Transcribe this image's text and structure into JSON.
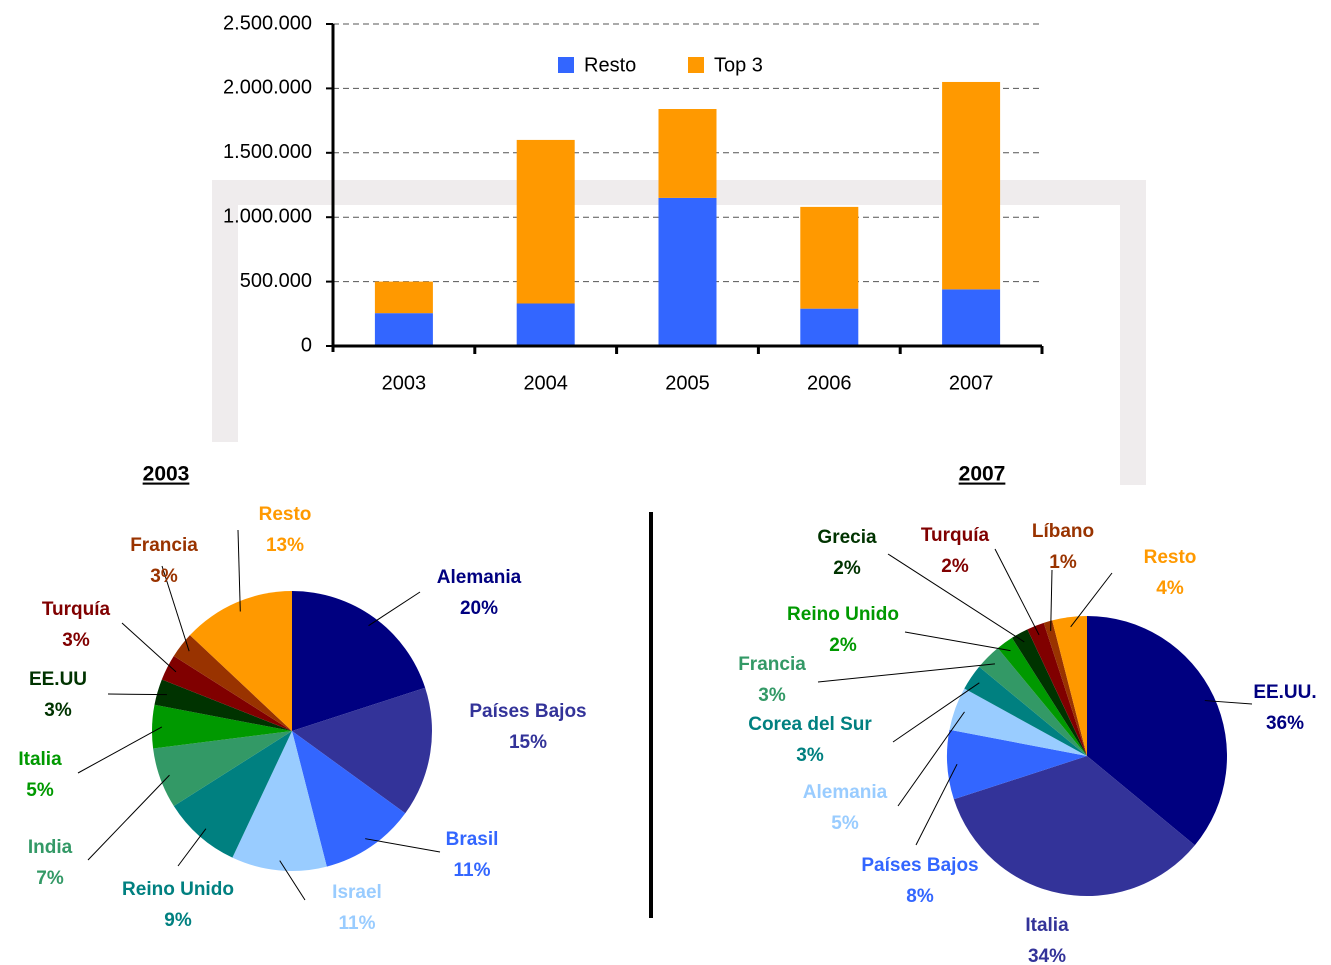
{
  "chart_data": [
    {
      "type": "bar",
      "stacked": true,
      "categories": [
        "2003",
        "2004",
        "2005",
        "2006",
        "2007"
      ],
      "series": [
        {
          "name": "Resto",
          "color": "#3366ff",
          "values": [
            255000,
            330000,
            1150000,
            290000,
            440000
          ]
        },
        {
          "name": "Top 3",
          "color": "#ff9900",
          "values": [
            245000,
            1270000,
            690000,
            790000,
            1610000
          ]
        }
      ],
      "ylim": [
        0,
        2500000
      ],
      "yticks": [
        0,
        {
          "value": 500000,
          "label": "500.000"
        },
        {
          "value": 1000000,
          "label": "1.000.000"
        },
        {
          "value": 1500000,
          "label": "1.500.000"
        },
        {
          "value": 2000000,
          "label": "2.000.000"
        },
        {
          "value": 2500000,
          "label": "2.500.000"
        }
      ],
      "grid": true,
      "legend": "top"
    },
    {
      "type": "pie",
      "title": "2003",
      "categories": [
        "Alemania",
        "Países Bajos",
        "Brasil",
        "Israel",
        "Reino Unido",
        "India",
        "Italia",
        "EE.UU",
        "Turquía",
        "Francia",
        "Resto"
      ],
      "values": [
        20,
        15,
        11,
        11,
        9,
        7,
        5,
        3,
        3,
        3,
        13
      ],
      "value_labels": [
        "20%",
        "15%",
        "11%",
        "11%",
        "9%",
        "7%",
        "5%",
        "3%",
        "3%",
        "3%",
        "13%"
      ],
      "colors": [
        "#000080",
        "#333399",
        "#3366ff",
        "#99ccff",
        "#008080",
        "#339966",
        "#009900",
        "#003300",
        "#800000",
        "#993300",
        "#ff9900"
      ]
    },
    {
      "type": "pie",
      "title": "2007",
      "categories": [
        "EE.UU.",
        "Italia",
        "Países Bajos",
        "Alemania",
        "Corea del Sur",
        "Francia",
        "Reino Unido",
        "Grecia",
        "Turquía",
        "Líbano",
        "Resto"
      ],
      "values": [
        36,
        34,
        8,
        5,
        3,
        3,
        2,
        2,
        2,
        1,
        4
      ],
      "value_labels": [
        "36%",
        "34%",
        "8%",
        "5%",
        "3%",
        "3%",
        "2%",
        "2%",
        "2%",
        "1%",
        "4%"
      ],
      "colors": [
        "#000080",
        "#333399",
        "#3366ff",
        "#99ccff",
        "#008080",
        "#339966",
        "#009900",
        "#003300",
        "#800000",
        "#993300",
        "#ff9900"
      ]
    }
  ]
}
